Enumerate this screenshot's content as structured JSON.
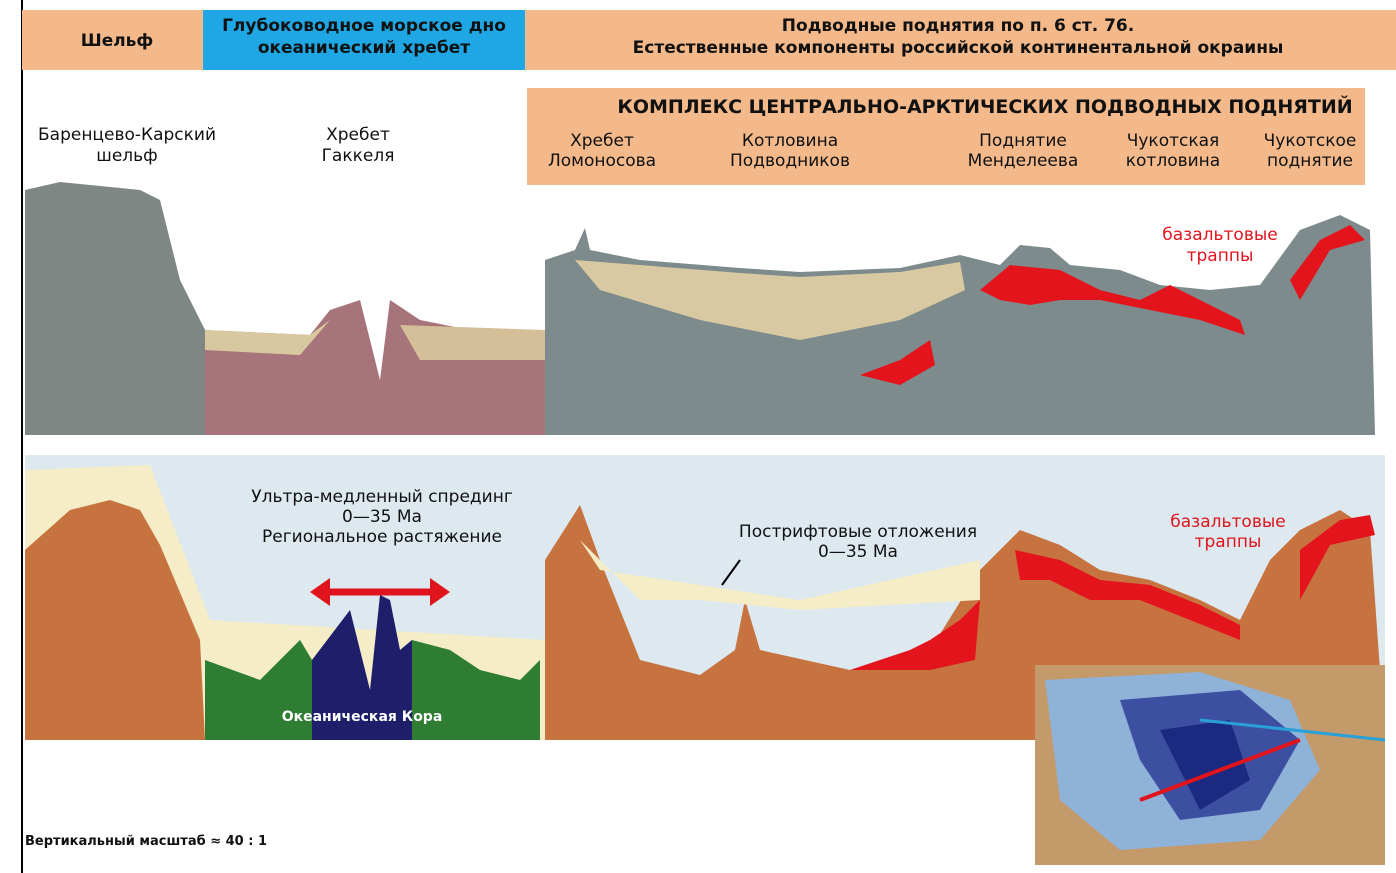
{
  "header": {
    "shelf": "Шельф",
    "deep": [
      "Глубоководное морское дно",
      "океанический хребет"
    ],
    "rises": [
      "Подводные поднятия по п. 6 ст. 76.",
      "Естественные компоненты российской континентальной окраины"
    ]
  },
  "complex": {
    "title": "КОМПЛЕКС ЦЕНТРАЛЬНО-АРКТИЧЕСКИХ ПОДВОДНЫХ ПОДНЯТИЙ",
    "features": [
      [
        "Хребет",
        "Ломоносова"
      ],
      [
        "Котловина",
        "Подводников"
      ],
      [
        "Поднятие",
        "Менделеева"
      ],
      [
        "Чукотская",
        "котловина"
      ],
      [
        "Чукотское",
        "поднятие"
      ]
    ]
  },
  "section_labels": {
    "shelf": [
      "Баренцево-Карский",
      "шельф"
    ],
    "gakkel": [
      "Хребет",
      "Гаккеля"
    ],
    "traps_top": [
      "базальтовые",
      "траппы"
    ]
  },
  "model_labels": {
    "spreading": [
      "Ультра-медленный спрединг",
      "0—35 Ma",
      "Региональное растяжение"
    ],
    "postrift": [
      "Пострифтовые отложения",
      "0—35 Ma"
    ],
    "traps": [
      "базальтовые",
      "траппы"
    ],
    "crust": "Океаническая Кора",
    "scale": "Вертикальный масштаб ≈ 40 : 1"
  }
}
